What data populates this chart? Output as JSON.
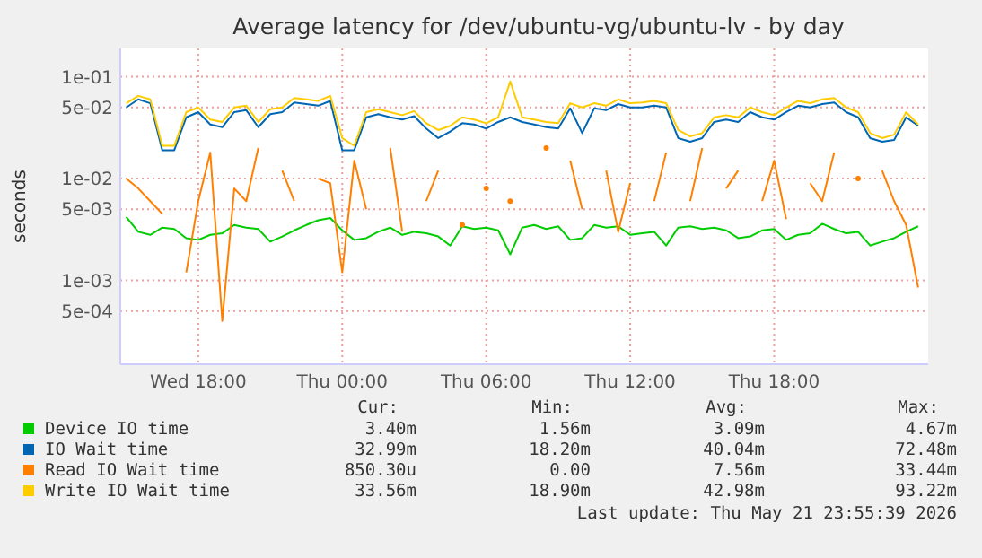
{
  "chart_data": {
    "type": "line",
    "title": "Average latency for /dev/ubuntu-vg/ubuntu-lv - by day",
    "ylabel": "seconds",
    "log": "y",
    "grid": true,
    "legend": "bottom",
    "marker": "none",
    "line_style": "solid",
    "xlim": [
      "2026-05-20T14:45",
      "2026-05-22T00:25"
    ],
    "xticks": [
      {
        "value": "2026-05-20T18:00",
        "label": "Wed 18:00"
      },
      {
        "value": "2026-05-21T00:00",
        "label": "Thu 00:00"
      },
      {
        "value": "2026-05-21T06:00",
        "label": "Thu 06:00"
      },
      {
        "value": "2026-05-21T12:00",
        "label": "Thu 12:00"
      },
      {
        "value": "2026-05-21T18:00",
        "label": "Thu 18:00"
      }
    ],
    "ylim": [
      0.00015,
      0.19
    ],
    "yticks": [
      {
        "value": 0.0005,
        "label": "5e-04"
      },
      {
        "value": 0.001,
        "label": "1e-03"
      },
      {
        "value": 0.005,
        "label": "5e-03"
      },
      {
        "value": 0.01,
        "label": "1e-02"
      },
      {
        "value": 0.05,
        "label": "5e-02"
      },
      {
        "value": 0.1,
        "label": "1e-01"
      }
    ],
    "x": [
      "2026-05-20T15:00",
      "2026-05-20T15:30",
      "2026-05-20T16:00",
      "2026-05-20T16:30",
      "2026-05-20T17:00",
      "2026-05-20T17:30",
      "2026-05-20T18:00",
      "2026-05-20T18:30",
      "2026-05-20T19:00",
      "2026-05-20T19:30",
      "2026-05-20T20:00",
      "2026-05-20T20:30",
      "2026-05-20T21:00",
      "2026-05-20T21:30",
      "2026-05-20T22:00",
      "2026-05-20T22:30",
      "2026-05-20T23:00",
      "2026-05-20T23:30",
      "2026-05-21T00:00",
      "2026-05-21T00:30",
      "2026-05-21T01:00",
      "2026-05-21T01:30",
      "2026-05-21T02:00",
      "2026-05-21T02:30",
      "2026-05-21T03:00",
      "2026-05-21T03:30",
      "2026-05-21T04:00",
      "2026-05-21T04:30",
      "2026-05-21T05:00",
      "2026-05-21T05:30",
      "2026-05-21T06:00",
      "2026-05-21T06:30",
      "2026-05-21T07:00",
      "2026-05-21T07:30",
      "2026-05-21T08:00",
      "2026-05-21T08:30",
      "2026-05-21T09:00",
      "2026-05-21T09:30",
      "2026-05-21T10:00",
      "2026-05-21T10:30",
      "2026-05-21T11:00",
      "2026-05-21T11:30",
      "2026-05-21T12:00",
      "2026-05-21T12:30",
      "2026-05-21T13:00",
      "2026-05-21T13:30",
      "2026-05-21T14:00",
      "2026-05-21T14:30",
      "2026-05-21T15:00",
      "2026-05-21T15:30",
      "2026-05-21T16:00",
      "2026-05-21T16:30",
      "2026-05-21T17:00",
      "2026-05-21T17:30",
      "2026-05-21T18:00",
      "2026-05-21T18:30",
      "2026-05-21T19:00",
      "2026-05-21T19:30",
      "2026-05-21T20:00",
      "2026-05-21T20:30",
      "2026-05-21T21:00",
      "2026-05-21T21:30",
      "2026-05-21T22:00",
      "2026-05-21T22:30",
      "2026-05-21T23:00",
      "2026-05-21T23:30",
      "2026-05-22T00:00"
    ],
    "series": [
      {
        "name": "Device IO time",
        "color": "#00cc00",
        "values": [
          0.0042,
          0.003,
          0.0028,
          0.0033,
          0.0032,
          0.0026,
          0.0025,
          0.0028,
          0.0029,
          0.0035,
          0.0033,
          0.0032,
          0.0024,
          0.0027,
          0.0031,
          0.0035,
          0.0039,
          0.0041,
          0.0031,
          0.0025,
          0.0026,
          0.003,
          0.0033,
          0.0028,
          0.003,
          0.0029,
          0.0027,
          0.0022,
          0.0034,
          0.0032,
          0.0033,
          0.0031,
          0.0018,
          0.0033,
          0.0035,
          0.0032,
          0.0034,
          0.0025,
          0.0026,
          0.0035,
          0.0033,
          0.0034,
          0.0028,
          0.0029,
          0.003,
          0.0022,
          0.0033,
          0.0034,
          0.0032,
          0.0033,
          0.0031,
          0.0026,
          0.0027,
          0.0031,
          0.0032,
          0.0025,
          0.0028,
          0.0029,
          0.0036,
          0.0032,
          0.0029,
          0.003,
          0.0022,
          0.0024,
          0.0026,
          0.003,
          0.0034
        ]
      },
      {
        "name": "IO Wait time",
        "color": "#0066b3",
        "values": [
          0.05,
          0.06,
          0.055,
          0.019,
          0.019,
          0.04,
          0.045,
          0.034,
          0.032,
          0.045,
          0.047,
          0.032,
          0.043,
          0.045,
          0.056,
          0.054,
          0.052,
          0.058,
          0.019,
          0.019,
          0.04,
          0.043,
          0.04,
          0.038,
          0.041,
          0.031,
          0.025,
          0.029,
          0.035,
          0.034,
          0.031,
          0.036,
          0.04,
          0.036,
          0.034,
          0.032,
          0.031,
          0.049,
          0.028,
          0.049,
          0.047,
          0.054,
          0.05,
          0.05,
          0.052,
          0.05,
          0.025,
          0.023,
          0.025,
          0.036,
          0.038,
          0.036,
          0.045,
          0.04,
          0.038,
          0.045,
          0.052,
          0.05,
          0.054,
          0.056,
          0.045,
          0.04,
          0.025,
          0.023,
          0.024,
          0.04,
          0.033
        ]
      },
      {
        "name": "Read IO Wait time",
        "color": "#ff8000",
        "values": [
          0.01,
          0.008,
          0.006,
          0.0045,
          null,
          0.0012,
          0.006,
          0.018,
          0.0004,
          0.008,
          0.006,
          0.02,
          null,
          0.012,
          0.006,
          null,
          0.01,
          0.009,
          0.0012,
          0.015,
          0.005,
          null,
          0.02,
          0.003,
          null,
          0.006,
          0.012,
          null,
          0.0035,
          null,
          0.008,
          null,
          0.006,
          null,
          null,
          0.02,
          null,
          0.015,
          0.005,
          null,
          0.012,
          0.003,
          0.009,
          null,
          0.006,
          0.018,
          null,
          0.006,
          0.02,
          null,
          0.008,
          0.012,
          null,
          0.006,
          0.015,
          0.004,
          null,
          0.009,
          0.006,
          0.018,
          null,
          0.01,
          null,
          0.012,
          0.006,
          0.0035,
          0.00085
        ]
      },
      {
        "name": "Write IO Wait time",
        "color": "#ffcc00",
        "values": [
          0.055,
          0.065,
          0.06,
          0.021,
          0.021,
          0.045,
          0.05,
          0.038,
          0.036,
          0.05,
          0.052,
          0.036,
          0.048,
          0.05,
          0.062,
          0.06,
          0.058,
          0.065,
          0.025,
          0.021,
          0.045,
          0.048,
          0.045,
          0.042,
          0.046,
          0.035,
          0.03,
          0.033,
          0.04,
          0.038,
          0.035,
          0.04,
          0.09,
          0.04,
          0.038,
          0.036,
          0.035,
          0.055,
          0.05,
          0.055,
          0.052,
          0.06,
          0.055,
          0.056,
          0.058,
          0.055,
          0.03,
          0.026,
          0.028,
          0.04,
          0.042,
          0.04,
          0.05,
          0.045,
          0.042,
          0.05,
          0.058,
          0.055,
          0.06,
          0.062,
          0.05,
          0.045,
          0.028,
          0.025,
          0.027,
          0.045,
          0.034
        ]
      }
    ],
    "annotations": [
      "Cur:",
      "Min:",
      "Avg:",
      "Max:",
      "3.40m",
      "1.56m",
      "3.09m",
      "4.67m",
      "32.99m",
      "18.20m",
      "40.04m",
      "72.48m",
      "850.30u",
      "0.00",
      "7.56m",
      "33.44m",
      "33.56m",
      "18.90m",
      "42.98m",
      "93.22m",
      "Last update: Thu May 21 23:55:39 2026"
    ]
  }
}
